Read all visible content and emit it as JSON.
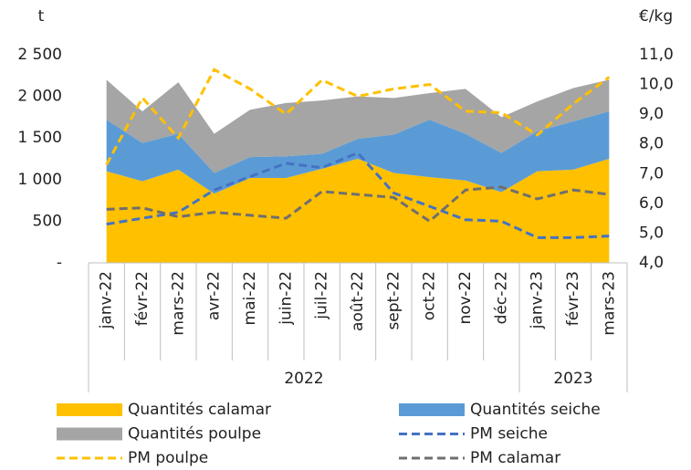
{
  "chart_data": {
    "type": "area",
    "y_label": "t",
    "y2_label": "€/kg",
    "categories": [
      "janv-22",
      "févr-22",
      "mars-22",
      "avr-22",
      "mai-22",
      "juin-22",
      "juil-22",
      "août-22",
      "sept-22",
      "oct-22",
      "nov-22",
      "déc-22",
      "janv-23",
      "févr-23",
      "mars-23"
    ],
    "groups": [
      {
        "label": "2022",
        "count": 12
      },
      {
        "label": "2023",
        "count": 3
      }
    ],
    "ylim": [
      0,
      2500
    ],
    "yticks": [
      {
        "value": 0,
        "label": "-"
      },
      500,
      {
        "value": 1000,
        "label": "1 000"
      },
      {
        "value": 1500,
        "label": "1 500"
      },
      {
        "value": 2000,
        "label": "2 000"
      },
      {
        "value": 2500,
        "label": "2 500"
      }
    ],
    "y2lim": [
      4,
      11
    ],
    "y2ticks": [
      {
        "value": 4,
        "label": "4,0"
      },
      {
        "value": 5,
        "label": "5,0"
      },
      {
        "value": 6,
        "label": "6,0"
      },
      {
        "value": 7,
        "label": "7,0"
      },
      {
        "value": 8,
        "label": "8,0"
      },
      {
        "value": 9,
        "label": "9,0"
      },
      {
        "value": 10,
        "label": "10,0"
      },
      {
        "value": 11,
        "label": "11,0"
      }
    ],
    "series": [
      {
        "name": "Quantités calamar",
        "type": "area",
        "color": "#ffc000",
        "values": [
          1100,
          980,
          1120,
          830,
          1020,
          1020,
          1130,
          1250,
          1080,
          1030,
          990,
          850,
          1100,
          1120,
          1250
        ]
      },
      {
        "name": "Quantités seiche",
        "type": "area",
        "color": "#5b9bd5",
        "values": [
          620,
          460,
          430,
          250,
          250,
          260,
          180,
          240,
          460,
          690,
          560,
          470,
          480,
          580,
          570
        ]
      },
      {
        "name": "Quantités poulpe",
        "type": "area",
        "color": "#a5a5a5",
        "values": [
          480,
          380,
          620,
          470,
          570,
          640,
          640,
          510,
          440,
          320,
          540,
          430,
          360,
          400,
          380
        ]
      },
      {
        "name": "PM seiche",
        "type": "line",
        "axis": "y2",
        "dashed": true,
        "color": "#4472c4",
        "values": [
          5.3,
          5.5,
          5.7,
          6.45,
          6.9,
          7.35,
          7.2,
          7.7,
          6.35,
          5.9,
          5.45,
          5.4,
          4.85,
          4.85,
          4.9
        ]
      },
      {
        "name": "PM poulpe",
        "type": "line",
        "axis": "y2",
        "dashed": true,
        "color": "#ffc000",
        "values": [
          7.3,
          9.55,
          8.2,
          10.5,
          9.85,
          9.0,
          10.15,
          9.6,
          9.85,
          10.0,
          9.1,
          9.05,
          8.3,
          9.35,
          10.25
        ]
      },
      {
        "name": "PM calamar",
        "type": "line",
        "axis": "y2",
        "dashed": true,
        "color": "#6f6f6f",
        "values": [
          5.8,
          5.85,
          5.55,
          5.7,
          5.6,
          5.5,
          6.4,
          6.3,
          6.2,
          5.4,
          6.45,
          6.55,
          6.15,
          6.45,
          6.3
        ]
      }
    ]
  }
}
